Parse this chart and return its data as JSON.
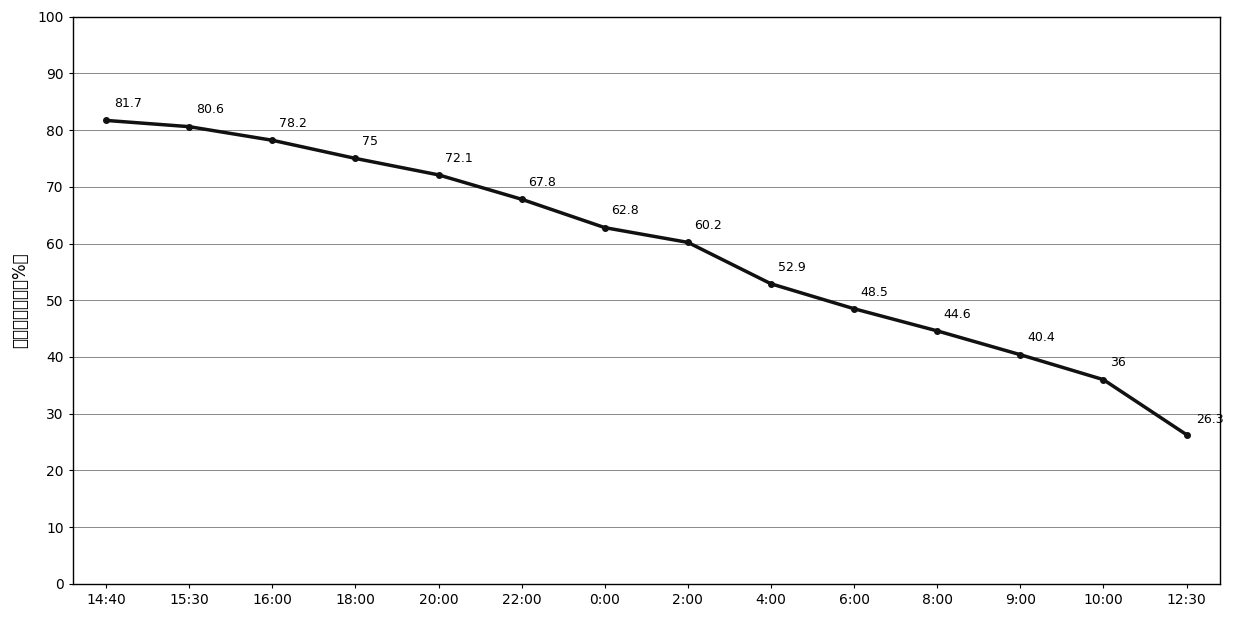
{
  "x_labels": [
    "14:40",
    "15:30",
    "16:00",
    "18:00",
    "20:00",
    "22:00",
    "0:00",
    "2:00",
    "4:00",
    "6:00",
    "8:00",
    "9:00",
    "10:00",
    "12:30"
  ],
  "y_values": [
    81.7,
    80.6,
    78.2,
    75.0,
    72.1,
    67.8,
    62.8,
    60.2,
    52.9,
    48.5,
    44.6,
    40.4,
    36.0,
    26.3
  ],
  "y_label": "排风相对湿度（%）",
  "ylim": [
    0,
    100
  ],
  "yticks": [
    0,
    10,
    20,
    30,
    40,
    50,
    60,
    70,
    80,
    90,
    100
  ],
  "line_color": "#111111",
  "line_width": 2.5,
  "marker": "o",
  "marker_size": 4,
  "background_color": "#ffffff",
  "grid_color": "#888888",
  "annotation_fontsize": 9,
  "ylabel_fontsize": 12,
  "tick_fontsize": 10
}
